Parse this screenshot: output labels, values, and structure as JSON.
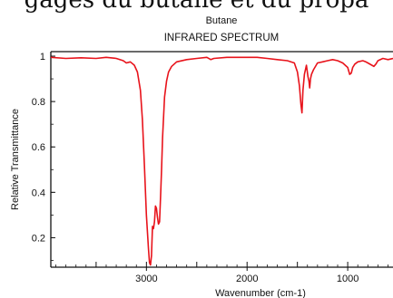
{
  "banner_text": "gages du butane et du propa",
  "chart_data": {
    "type": "line",
    "title": "Butane",
    "subtitle": "INFRARED SPECTRUM",
    "xlabel": "Wavenumber (cm-1)",
    "ylabel": "Relative Transmittance",
    "xlim": [
      3950,
      550
    ],
    "ylim": [
      0.07,
      1.02
    ],
    "x_reversed": true,
    "xticks": [
      {
        "value": 3000,
        "label": "3000"
      },
      {
        "value": 2000,
        "label": "2000"
      },
      {
        "value": 1000,
        "label": "1000"
      }
    ],
    "yticks": [
      {
        "value": 1,
        "label": "1"
      },
      {
        "value": 0.8,
        "label": "0.8"
      },
      {
        "value": 0.6,
        "label": "0.6"
      },
      {
        "value": 0.4,
        "label": "0.4"
      },
      {
        "value": 0.2,
        "label": "0.2"
      }
    ],
    "grid": false,
    "line_color": "#e8131b",
    "series": [
      {
        "x": [
          3950,
          3800,
          3650,
          3500,
          3400,
          3300,
          3230,
          3200,
          3160,
          3120,
          3090,
          3060,
          3040,
          3020,
          3000,
          2980,
          2970,
          2960,
          2950,
          2940,
          2930,
          2920,
          2910,
          2900,
          2890,
          2880,
          2870,
          2860,
          2850,
          2840,
          2820,
          2800,
          2780,
          2750,
          2700,
          2600,
          2500,
          2400,
          2360,
          2330,
          2200,
          2000,
          1900,
          1800,
          1700,
          1600,
          1530,
          1500,
          1480,
          1465,
          1455,
          1445,
          1430,
          1410,
          1395,
          1385,
          1378,
          1370,
          1360,
          1340,
          1300,
          1250,
          1200,
          1150,
          1100,
          1050,
          1000,
          980,
          965,
          950,
          930,
          900,
          850,
          820,
          800,
          760,
          740,
          720,
          700,
          650,
          600,
          550
        ],
        "y": [
          0.995,
          0.99,
          0.993,
          0.99,
          0.995,
          0.99,
          0.98,
          0.97,
          0.975,
          0.96,
          0.93,
          0.85,
          0.72,
          0.52,
          0.3,
          0.15,
          0.09,
          0.08,
          0.12,
          0.25,
          0.24,
          0.27,
          0.34,
          0.33,
          0.29,
          0.26,
          0.27,
          0.38,
          0.5,
          0.64,
          0.82,
          0.89,
          0.93,
          0.955,
          0.975,
          0.985,
          0.99,
          0.995,
          0.985,
          0.99,
          0.995,
          0.995,
          0.995,
          0.99,
          0.985,
          0.98,
          0.97,
          0.93,
          0.87,
          0.79,
          0.75,
          0.85,
          0.92,
          0.96,
          0.91,
          0.89,
          0.86,
          0.9,
          0.92,
          0.94,
          0.97,
          0.975,
          0.98,
          0.985,
          0.98,
          0.97,
          0.95,
          0.92,
          0.925,
          0.95,
          0.965,
          0.975,
          0.98,
          0.975,
          0.97,
          0.96,
          0.955,
          0.965,
          0.98,
          0.99,
          0.985,
          0.99
        ]
      }
    ]
  }
}
